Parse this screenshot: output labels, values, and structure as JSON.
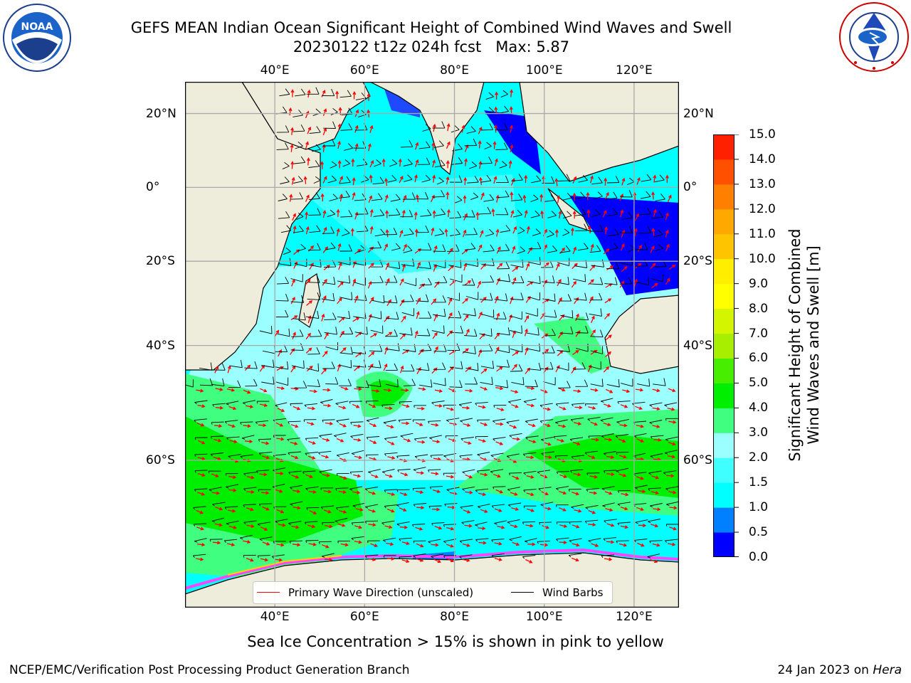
{
  "title_line1": "GEFS MEAN Indian Ocean Significant Height of Combined Wind Waves and Swell",
  "title_line2": "20230122 t12z 024h fcst   Max: 5.87",
  "logos": {
    "left": {
      "name": "noaa-logo",
      "text": "NOAA",
      "ring_text": "NATIONAL OCEANIC AND ATMOSPHERIC ADMINISTRATION · U.S. DEPARTMENT OF COMMERCE"
    },
    "right": {
      "name": "nws-logo",
      "ring_text": "NATIONAL WEATHER SERVICE"
    }
  },
  "map": {
    "lon_ticks": [
      "40°E",
      "60°E",
      "80°E",
      "100°E",
      "120°E"
    ],
    "lon_values": [
      40,
      60,
      80,
      100,
      120
    ],
    "lat_ticks_left": [
      "20°N",
      "0°",
      "20°S",
      "40°S",
      "60°S"
    ],
    "lat_ticks_right": [
      "20°N",
      "0°",
      "20°S",
      "40°S",
      "60°S"
    ],
    "lat_values": [
      20,
      0,
      -20,
      -40,
      -60
    ],
    "extent": {
      "lon_min": 20,
      "lon_max": 130,
      "lat_min": -75,
      "lat_max": 28
    },
    "grid": true,
    "land_color": "#eeeddc",
    "ocean_base_color": "#00ffff"
  },
  "colorbar": {
    "title": "Significant Height of Combined Wind Waves and Swell [m]",
    "title_lines": [
      "Significant Height of Combined",
      "Wind Waves and Swell [m]"
    ],
    "tick_labels": [
      "0.0",
      "0.5",
      "1.0",
      "1.5",
      "2.0",
      "3.0",
      "4.0",
      "5.0",
      "6.0",
      "7.0",
      "8.0",
      "9.0",
      "10.0",
      "11.0",
      "12.0",
      "13.0",
      "14.0",
      "15.0"
    ],
    "colors": [
      "#0000ff",
      "#0080ff",
      "#00ffff",
      "#40ffff",
      "#9cffff",
      "#40ff80",
      "#00ee00",
      "#48ee00",
      "#a8ee00",
      "#d4f500",
      "#ffff00",
      "#ffee00",
      "#ffc400",
      "#ffa800",
      "#ff8000",
      "#ff5000",
      "#ff2000"
    ]
  },
  "legend": {
    "items": [
      {
        "label": "Primary Wave Direction (unscaled)",
        "color": "#ff0000"
      },
      {
        "label": "Wind Barbs",
        "color": "#000000"
      }
    ]
  },
  "caption": "Sea Ice Concentration > 15% is shown in pink to yellow",
  "footer_left": "NCEP/EMC/Verification Post Processing Product Generation Branch",
  "footer_right_prefix": "24 Jan 2023 on ",
  "footer_right_host": "Hera"
}
